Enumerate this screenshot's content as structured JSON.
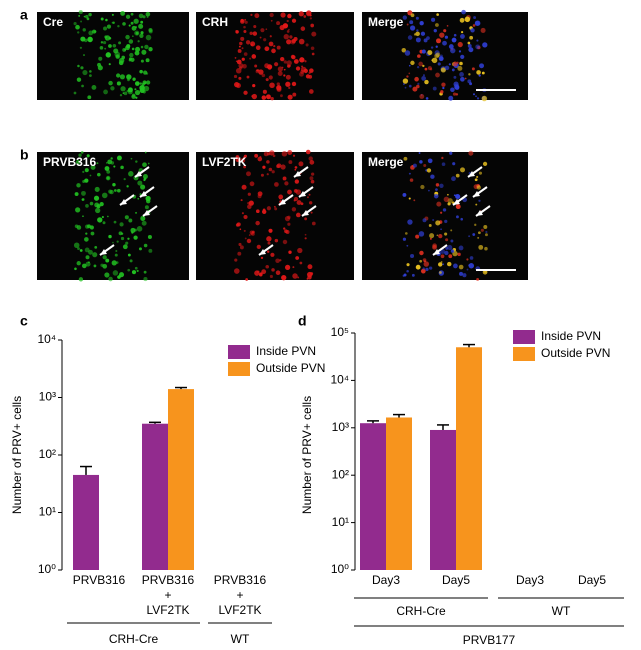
{
  "panels": [
    {
      "letter": "a",
      "images": [
        "Cre",
        "CRH",
        "Merge"
      ]
    },
    {
      "letter": "b",
      "images": [
        "PRVB316",
        "LVF2TK",
        "Merge"
      ]
    }
  ],
  "chart_data": [
    {
      "type": "bar",
      "letter": "c",
      "ylabel": "Number of PRV+ cells",
      "log_scale": true,
      "categories": [
        [
          "PRVB316"
        ],
        [
          "PRVB316",
          "+",
          "LVF2TK"
        ],
        [
          "PRVB316",
          "+",
          "LVF2TK"
        ]
      ],
      "groups": [
        {
          "label": "CRH-Cre",
          "count": 2
        },
        {
          "label": "WT",
          "count": 1
        }
      ],
      "series": [
        {
          "name": "Inside PVN",
          "color": "#922b8e",
          "values": [
            45,
            350,
            null
          ],
          "errors": [
            18,
            20,
            null
          ]
        },
        {
          "name": "Outside PVN",
          "color": "#f7941d",
          "values": [
            null,
            1400,
            null
          ],
          "errors": [
            null,
            90,
            null
          ]
        }
      ],
      "ylim": [
        1,
        10000
      ],
      "yticks": [
        {
          "value": 1,
          "label": "10⁰"
        },
        {
          "value": 10,
          "label": "10¹"
        },
        {
          "value": 100,
          "label": "10²"
        },
        {
          "value": 1000,
          "label": "10³"
        },
        {
          "value": 10000,
          "label": "10⁴"
        }
      ],
      "legend": "top-right"
    },
    {
      "type": "bar",
      "letter": "d",
      "ylabel": "Number of PRV+ cells",
      "log_scale": true,
      "categories": [
        [
          "Day3"
        ],
        [
          "Day5"
        ],
        [
          "Day3"
        ],
        [
          "Day5"
        ]
      ],
      "groups": [
        {
          "label": "CRH-Cre",
          "count": 2
        },
        {
          "label": "WT",
          "count": 2
        }
      ],
      "outer_group": "PRVB177",
      "series": [
        {
          "name": "Inside PVN",
          "color": "#922b8e",
          "values": [
            1250,
            900,
            null,
            null
          ],
          "errors": [
            150,
            250,
            null,
            null
          ]
        },
        {
          "name": "Outside PVN",
          "color": "#f7941d",
          "values": [
            1650,
            50000,
            null,
            null
          ],
          "errors": [
            250,
            7000,
            null,
            null
          ]
        }
      ],
      "ylim": [
        1,
        100000
      ],
      "yticks": [
        {
          "value": 1,
          "label": "10⁰"
        },
        {
          "value": 10,
          "label": "10¹"
        },
        {
          "value": 100,
          "label": "10²"
        },
        {
          "value": 1000,
          "label": "10³"
        },
        {
          "value": 10000,
          "label": "10⁴"
        },
        {
          "value": 100000,
          "label": "10⁵"
        }
      ],
      "legend": "top-right"
    }
  ]
}
